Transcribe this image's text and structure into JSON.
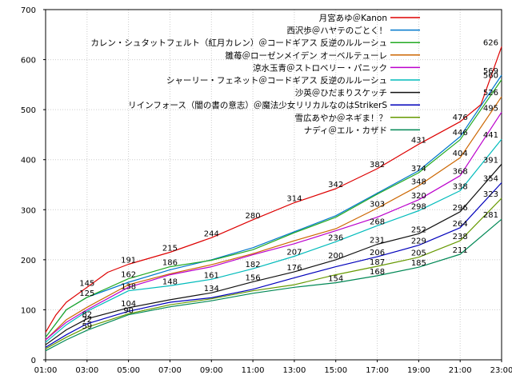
{
  "chart_data": {
    "type": "line",
    "title": "",
    "xlabel": "",
    "ylabel": "",
    "xlim": [
      "01:00",
      "23:00"
    ],
    "ylim": [
      0,
      700
    ],
    "x_ticks": [
      "01:00",
      "03:00",
      "05:00",
      "07:00",
      "09:00",
      "11:00",
      "13:00",
      "15:00",
      "17:00",
      "19:00",
      "21:00",
      "23:00"
    ],
    "y_ticks": [
      0,
      100,
      200,
      300,
      400,
      500,
      600,
      700
    ],
    "grid": true,
    "legend_position": "top-right",
    "series": [
      {
        "name": "月宮あゆ＠Kanon",
        "color": "#dd0000",
        "points": [
          [
            "01:00",
            55
          ],
          [
            "01:30",
            90
          ],
          [
            "02:00",
            115
          ],
          [
            "03:00",
            145
          ],
          [
            "04:00",
            175
          ],
          [
            "05:00",
            191
          ],
          [
            "07:00",
            215
          ],
          [
            "09:00",
            244
          ],
          [
            "11:00",
            280
          ],
          [
            "13:00",
            314
          ],
          [
            "15:00",
            342
          ],
          [
            "17:00",
            382
          ],
          [
            "19:00",
            431
          ],
          [
            "21:00",
            476
          ],
          [
            "22:00",
            510
          ],
          [
            "23:00",
            626
          ]
        ],
        "labels": [
          [
            145,
            "03:00"
          ],
          [
            191,
            "05:00"
          ],
          [
            215,
            "07:00"
          ],
          [
            244,
            "09:00"
          ],
          [
            280,
            "11:00"
          ],
          [
            314,
            "13:00"
          ],
          [
            342,
            "15:00"
          ],
          [
            382,
            "17:00"
          ],
          [
            431,
            "19:00"
          ],
          [
            476,
            "21:00"
          ],
          [
            626,
            "23:00"
          ]
        ]
      },
      {
        "name": "西沢歩＠ハヤテのごとく！",
        "color": "#0077cc",
        "points": [
          [
            "01:00",
            45
          ],
          [
            "02:00",
            100
          ],
          [
            "03:00",
            125
          ],
          [
            "05:00",
            155
          ],
          [
            "07:00",
            180
          ],
          [
            "09:00",
            200
          ],
          [
            "11:00",
            224
          ],
          [
            "13:00",
            256
          ],
          [
            "15:00",
            288
          ],
          [
            "17:00",
            333
          ],
          [
            "19:00",
            378
          ],
          [
            "21:00",
            446
          ],
          [
            "23:00",
            569
          ]
        ],
        "labels": [
          [
            125,
            "03:00"
          ],
          [
            446,
            "21:00"
          ],
          [
            569,
            "23:00"
          ]
        ]
      },
      {
        "name": "カレン・シュタットフェルト（紅月カレン）＠コードギアス 反逆のルルーシュ",
        "color": "#22aa22",
        "points": [
          [
            "01:00",
            45
          ],
          [
            "02:00",
            100
          ],
          [
            "03:00",
            125
          ],
          [
            "05:00",
            162
          ],
          [
            "07:00",
            186
          ],
          [
            "09:00",
            199
          ],
          [
            "11:00",
            220
          ],
          [
            "13:00",
            254
          ],
          [
            "15:00",
            285
          ],
          [
            "17:00",
            331
          ],
          [
            "19:00",
            374
          ],
          [
            "21:00",
            440
          ],
          [
            "23:00",
            560
          ]
        ],
        "labels": [
          [
            162,
            "05:00"
          ],
          [
            186,
            "07:00"
          ],
          [
            374,
            "19:00"
          ],
          [
            560,
            "23:00"
          ]
        ]
      },
      {
        "name": "雛苺＠ローゼンメイデン オーベルテューレ",
        "color": "#cc6600",
        "points": [
          [
            "01:00",
            40
          ],
          [
            "02:00",
            80
          ],
          [
            "03:00",
            105
          ],
          [
            "05:00",
            150
          ],
          [
            "07:00",
            172
          ],
          [
            "09:00",
            190
          ],
          [
            "11:00",
            212
          ],
          [
            "13:00",
            238
          ],
          [
            "15:00",
            262
          ],
          [
            "17:00",
            303
          ],
          [
            "19:00",
            348
          ],
          [
            "21:00",
            404
          ],
          [
            "23:00",
            526
          ]
        ],
        "labels": [
          [
            303,
            "17:00"
          ],
          [
            348,
            "19:00"
          ],
          [
            404,
            "21:00"
          ],
          [
            526,
            "23:00"
          ]
        ]
      },
      {
        "name": "涼水玉青＠ストロベリー・パニック",
        "color": "#bb00cc",
        "points": [
          [
            "01:00",
            40
          ],
          [
            "02:00",
            75
          ],
          [
            "03:00",
            100
          ],
          [
            "05:00",
            145
          ],
          [
            "07:00",
            170
          ],
          [
            "09:00",
            186
          ],
          [
            "11:00",
            210
          ],
          [
            "13:00",
            232
          ],
          [
            "15:00",
            258
          ],
          [
            "17:00",
            285
          ],
          [
            "19:00",
            320
          ],
          [
            "21:00",
            368
          ],
          [
            "23:00",
            495
          ]
        ],
        "labels": [
          [
            320,
            "19:00"
          ],
          [
            368,
            "21:00"
          ],
          [
            495,
            "23:00"
          ]
        ]
      },
      {
        "name": "シャーリー・フェネット＠コードギアス 反逆のルルーシュ",
        "color": "#00bbbb",
        "points": [
          [
            "01:00",
            35
          ],
          [
            "02:00",
            70
          ],
          [
            "03:00",
            97
          ],
          [
            "05:00",
            138
          ],
          [
            "07:00",
            148
          ],
          [
            "09:00",
            161
          ],
          [
            "11:00",
            182
          ],
          [
            "13:00",
            207
          ],
          [
            "15:00",
            236
          ],
          [
            "17:00",
            268
          ],
          [
            "19:00",
            298
          ],
          [
            "21:00",
            338
          ],
          [
            "23:00",
            441
          ]
        ],
        "labels": [
          [
            138,
            "05:00"
          ],
          [
            148,
            "07:00"
          ],
          [
            161,
            "09:00"
          ],
          [
            182,
            "11:00"
          ],
          [
            207,
            "13:00"
          ],
          [
            236,
            "15:00"
          ],
          [
            268,
            "17:00"
          ],
          [
            298,
            "19:00"
          ],
          [
            338,
            "21:00"
          ],
          [
            441,
            "23:00"
          ]
        ]
      },
      {
        "name": "沙英＠ひだまりスケッチ",
        "color": "#111111",
        "points": [
          [
            "01:00",
            30
          ],
          [
            "02:00",
            60
          ],
          [
            "03:00",
            82
          ],
          [
            "05:00",
            104
          ],
          [
            "07:00",
            120
          ],
          [
            "09:00",
            134
          ],
          [
            "11:00",
            156
          ],
          [
            "13:00",
            176
          ],
          [
            "15:00",
            200
          ],
          [
            "17:00",
            231
          ],
          [
            "19:00",
            252
          ],
          [
            "21:00",
            296
          ],
          [
            "23:00",
            391
          ]
        ],
        "labels": [
          [
            82,
            "03:00"
          ],
          [
            104,
            "05:00"
          ],
          [
            134,
            "09:00"
          ],
          [
            156,
            "11:00"
          ],
          [
            176,
            "13:00"
          ],
          [
            200,
            "15:00"
          ],
          [
            231,
            "17:00"
          ],
          [
            252,
            "19:00"
          ],
          [
            296,
            "21:00"
          ],
          [
            391,
            "23:00"
          ]
        ]
      },
      {
        "name": "リインフォース（闇の書の意志）＠魔法少女リリカルなのはStrikerS",
        "color": "#0000bb",
        "points": [
          [
            "01:00",
            25
          ],
          [
            "02:00",
            50
          ],
          [
            "03:00",
            72
          ],
          [
            "05:00",
            97
          ],
          [
            "07:00",
            115
          ],
          [
            "09:00",
            124
          ],
          [
            "11:00",
            141
          ],
          [
            "13:00",
            164
          ],
          [
            "15:00",
            186
          ],
          [
            "17:00",
            206
          ],
          [
            "19:00",
            229
          ],
          [
            "21:00",
            264
          ],
          [
            "23:00",
            354
          ]
        ],
        "labels": [
          [
            72,
            "03:00"
          ],
          [
            206,
            "17:00"
          ],
          [
            229,
            "19:00"
          ],
          [
            264,
            "21:00"
          ],
          [
            354,
            "23:00"
          ]
        ]
      },
      {
        "name": "雪広あやか＠ネギま！？",
        "color": "#669900",
        "points": [
          [
            "01:00",
            22
          ],
          [
            "02:00",
            45
          ],
          [
            "03:00",
            65
          ],
          [
            "05:00",
            92
          ],
          [
            "07:00",
            110
          ],
          [
            "09:00",
            122
          ],
          [
            "11:00",
            138
          ],
          [
            "13:00",
            150
          ],
          [
            "15:00",
            170
          ],
          [
            "17:00",
            187
          ],
          [
            "19:00",
            205
          ],
          [
            "21:00",
            238
          ],
          [
            "23:00",
            323
          ]
        ],
        "labels": [
          [
            187,
            "17:00"
          ],
          [
            205,
            "19:00"
          ],
          [
            238,
            "21:00"
          ],
          [
            323,
            "23:00"
          ]
        ]
      },
      {
        "name": "ナディ＠エル・カザド",
        "color": "#008855",
        "points": [
          [
            "01:00",
            18
          ],
          [
            "02:00",
            40
          ],
          [
            "03:00",
            59
          ],
          [
            "05:00",
            90
          ],
          [
            "07:00",
            106
          ],
          [
            "09:00",
            118
          ],
          [
            "11:00",
            133
          ],
          [
            "13:00",
            145
          ],
          [
            "15:00",
            154
          ],
          [
            "17:00",
            168
          ],
          [
            "19:00",
            185
          ],
          [
            "21:00",
            211
          ],
          [
            "23:00",
            281
          ]
        ],
        "labels": [
          [
            59,
            "03:00"
          ],
          [
            90,
            "05:00"
          ],
          [
            154,
            "15:00"
          ],
          [
            168,
            "17:00"
          ],
          [
            185,
            "19:00"
          ],
          [
            211,
            "21:00"
          ],
          [
            281,
            "23:00"
          ]
        ]
      }
    ]
  }
}
